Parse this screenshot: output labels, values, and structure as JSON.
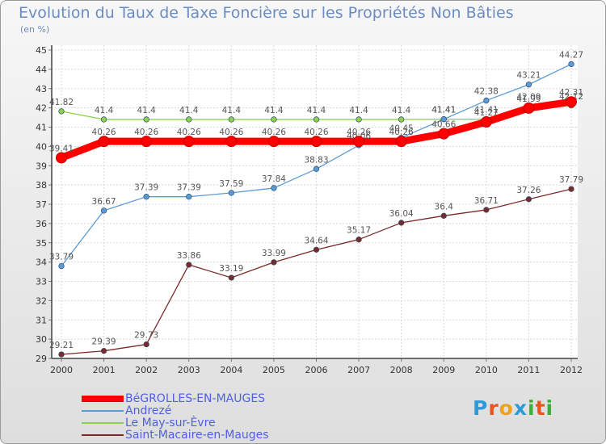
{
  "header": {
    "title": "Evolution du Taux de Taxe Foncière sur les Propriétés Non Bâties",
    "unit_label": "(en %)"
  },
  "brand": {
    "text": "Proxiti",
    "colors": [
      "#2e9ad6",
      "#e8561e",
      "#f0a020",
      "#2e9ad6",
      "#3cae3c",
      "#e8561e",
      "#3cae3c"
    ]
  },
  "chart_data": {
    "type": "line",
    "x": [
      "2000",
      "2001",
      "2002",
      "2003",
      "2004",
      "2005",
      "2006",
      "2007",
      "2008",
      "2009",
      "2010",
      "2011",
      "2012"
    ],
    "ylim": [
      29,
      45
    ],
    "yticks": [
      29,
      30,
      31,
      32,
      33,
      34,
      35,
      36,
      37,
      38,
      39,
      40,
      41,
      42,
      43,
      44,
      45
    ],
    "grid": true,
    "legend_position": "bottom-left",
    "series": [
      {
        "name": "BéGROLLES-EN-MAUGES",
        "color": "#ff0000",
        "values": [
          39.41,
          40.26,
          40.26,
          40.26,
          40.26,
          40.26,
          40.26,
          40.26,
          40.26,
          40.66,
          41.27,
          41.99,
          42.31
        ],
        "labels": [
          "39.41",
          "40.26",
          "40.26",
          "40.26",
          "40.26",
          "40.26",
          "40.26",
          "40.26",
          "40.26",
          "40.66",
          "41.27",
          "41.99",
          "42.31"
        ]
      },
      {
        "name": "Andrezé",
        "color": "#5b9bd5",
        "values": [
          33.79,
          36.67,
          37.39,
          37.39,
          37.59,
          37.84,
          38.83,
          40.06,
          40.45,
          41.41,
          42.38,
          43.21,
          44.27
        ],
        "labels": [
          "33.79",
          "36.67",
          "37.39",
          "37.39",
          "37.59",
          "37.84",
          "38.83",
          "40.06",
          "40.45",
          "41.41",
          "42.38",
          "43.21",
          "44.27"
        ]
      },
      {
        "name": "Le May-sur-Èvre",
        "color": "#8fd14f",
        "values": [
          41.82,
          41.4,
          41.4,
          41.4,
          41.4,
          41.4,
          41.4,
          41.4,
          41.4,
          41.41,
          41.41,
          42.09,
          42.12
        ],
        "labels": [
          "41.82",
          "41.4",
          "41.4",
          "41.4",
          "41.4",
          "41.4",
          "41.4",
          "41.4",
          "41.4",
          "41.41",
          "41.41",
          "42.09",
          "42.12"
        ]
      },
      {
        "name": "Saint-Macaire-en-Mauges",
        "color": "#7b2a2a",
        "values": [
          29.21,
          29.39,
          29.73,
          33.86,
          33.19,
          33.99,
          34.64,
          35.17,
          36.04,
          36.4,
          36.71,
          37.26,
          37.79
        ],
        "labels": [
          "29.21",
          "29.39",
          "29.73",
          "33.86",
          "33.19",
          "33.99",
          "34.64",
          "35.17",
          "36.04",
          "36.4",
          "36.71",
          "37.26",
          "37.79"
        ]
      }
    ]
  }
}
